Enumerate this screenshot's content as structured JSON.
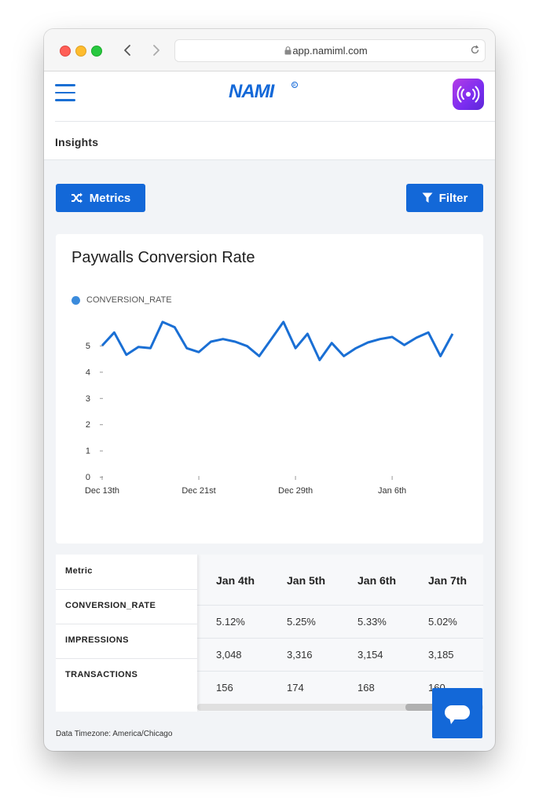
{
  "browser": {
    "url": "app.namiml.com"
  },
  "header": {
    "logo_text": "NAMI",
    "breadcrumb": "Insights"
  },
  "toolbar": {
    "metrics_label": "Metrics",
    "filter_label": "Filter"
  },
  "chart": {
    "title": "Paywalls Conversion Rate",
    "legend": "CONVERSION_RATE",
    "y_ticks": [
      "0",
      "1",
      "2",
      "3",
      "4",
      "5"
    ],
    "x_ticks": [
      "Dec 13th",
      "Dec 21st",
      "Dec 29th",
      "Jan 6th"
    ]
  },
  "chart_data": {
    "type": "line",
    "title": "Paywalls Conversion Rate",
    "xlabel": "",
    "ylabel": "",
    "ylim": [
      0,
      5.8
    ],
    "x_ticks": [
      "Dec 13th",
      "Dec 21st",
      "Dec 29th",
      "Jan 6th"
    ],
    "grid": false,
    "legend": "top-left",
    "series": [
      {
        "name": "CONVERSION_RATE",
        "color": "#1a6fd4",
        "values": [
          5.0,
          5.5,
          4.65,
          4.95,
          4.9,
          5.9,
          5.7,
          4.9,
          4.75,
          5.15,
          5.25,
          5.15,
          4.98,
          4.6,
          5.25,
          5.9,
          4.9,
          5.45,
          4.45,
          5.1,
          4.6,
          4.9,
          5.12,
          5.25,
          5.33,
          5.02,
          5.3,
          5.5,
          4.6,
          5.45
        ]
      }
    ]
  },
  "table": {
    "metric_header": "Metric",
    "metrics": [
      "CONVERSION_RATE",
      "IMPRESSIONS",
      "TRANSACTIONS"
    ],
    "columns": [
      "Jan 4th",
      "Jan 5th",
      "Jan 6th",
      "Jan 7th"
    ],
    "rows": [
      [
        "5.12%",
        "5.25%",
        "5.33%",
        "5.02%"
      ],
      [
        "3,048",
        "3,316",
        "3,154",
        "3,185"
      ],
      [
        "156",
        "174",
        "168",
        "160"
      ]
    ]
  },
  "footer": {
    "timezone": "Data Timezone: America/Chicago"
  },
  "colors": {
    "accent": "#1368d8",
    "line": "#1a6fd4",
    "legend": "#3b8bdc",
    "background": "#f2f4f7"
  },
  "icons": [
    "back-arrow-icon",
    "forward-arrow-icon",
    "lock-icon",
    "reload-icon",
    "hamburger-menu-icon",
    "broadcast-icon",
    "shuffle-icon",
    "filter-icon",
    "chat-icon"
  ]
}
